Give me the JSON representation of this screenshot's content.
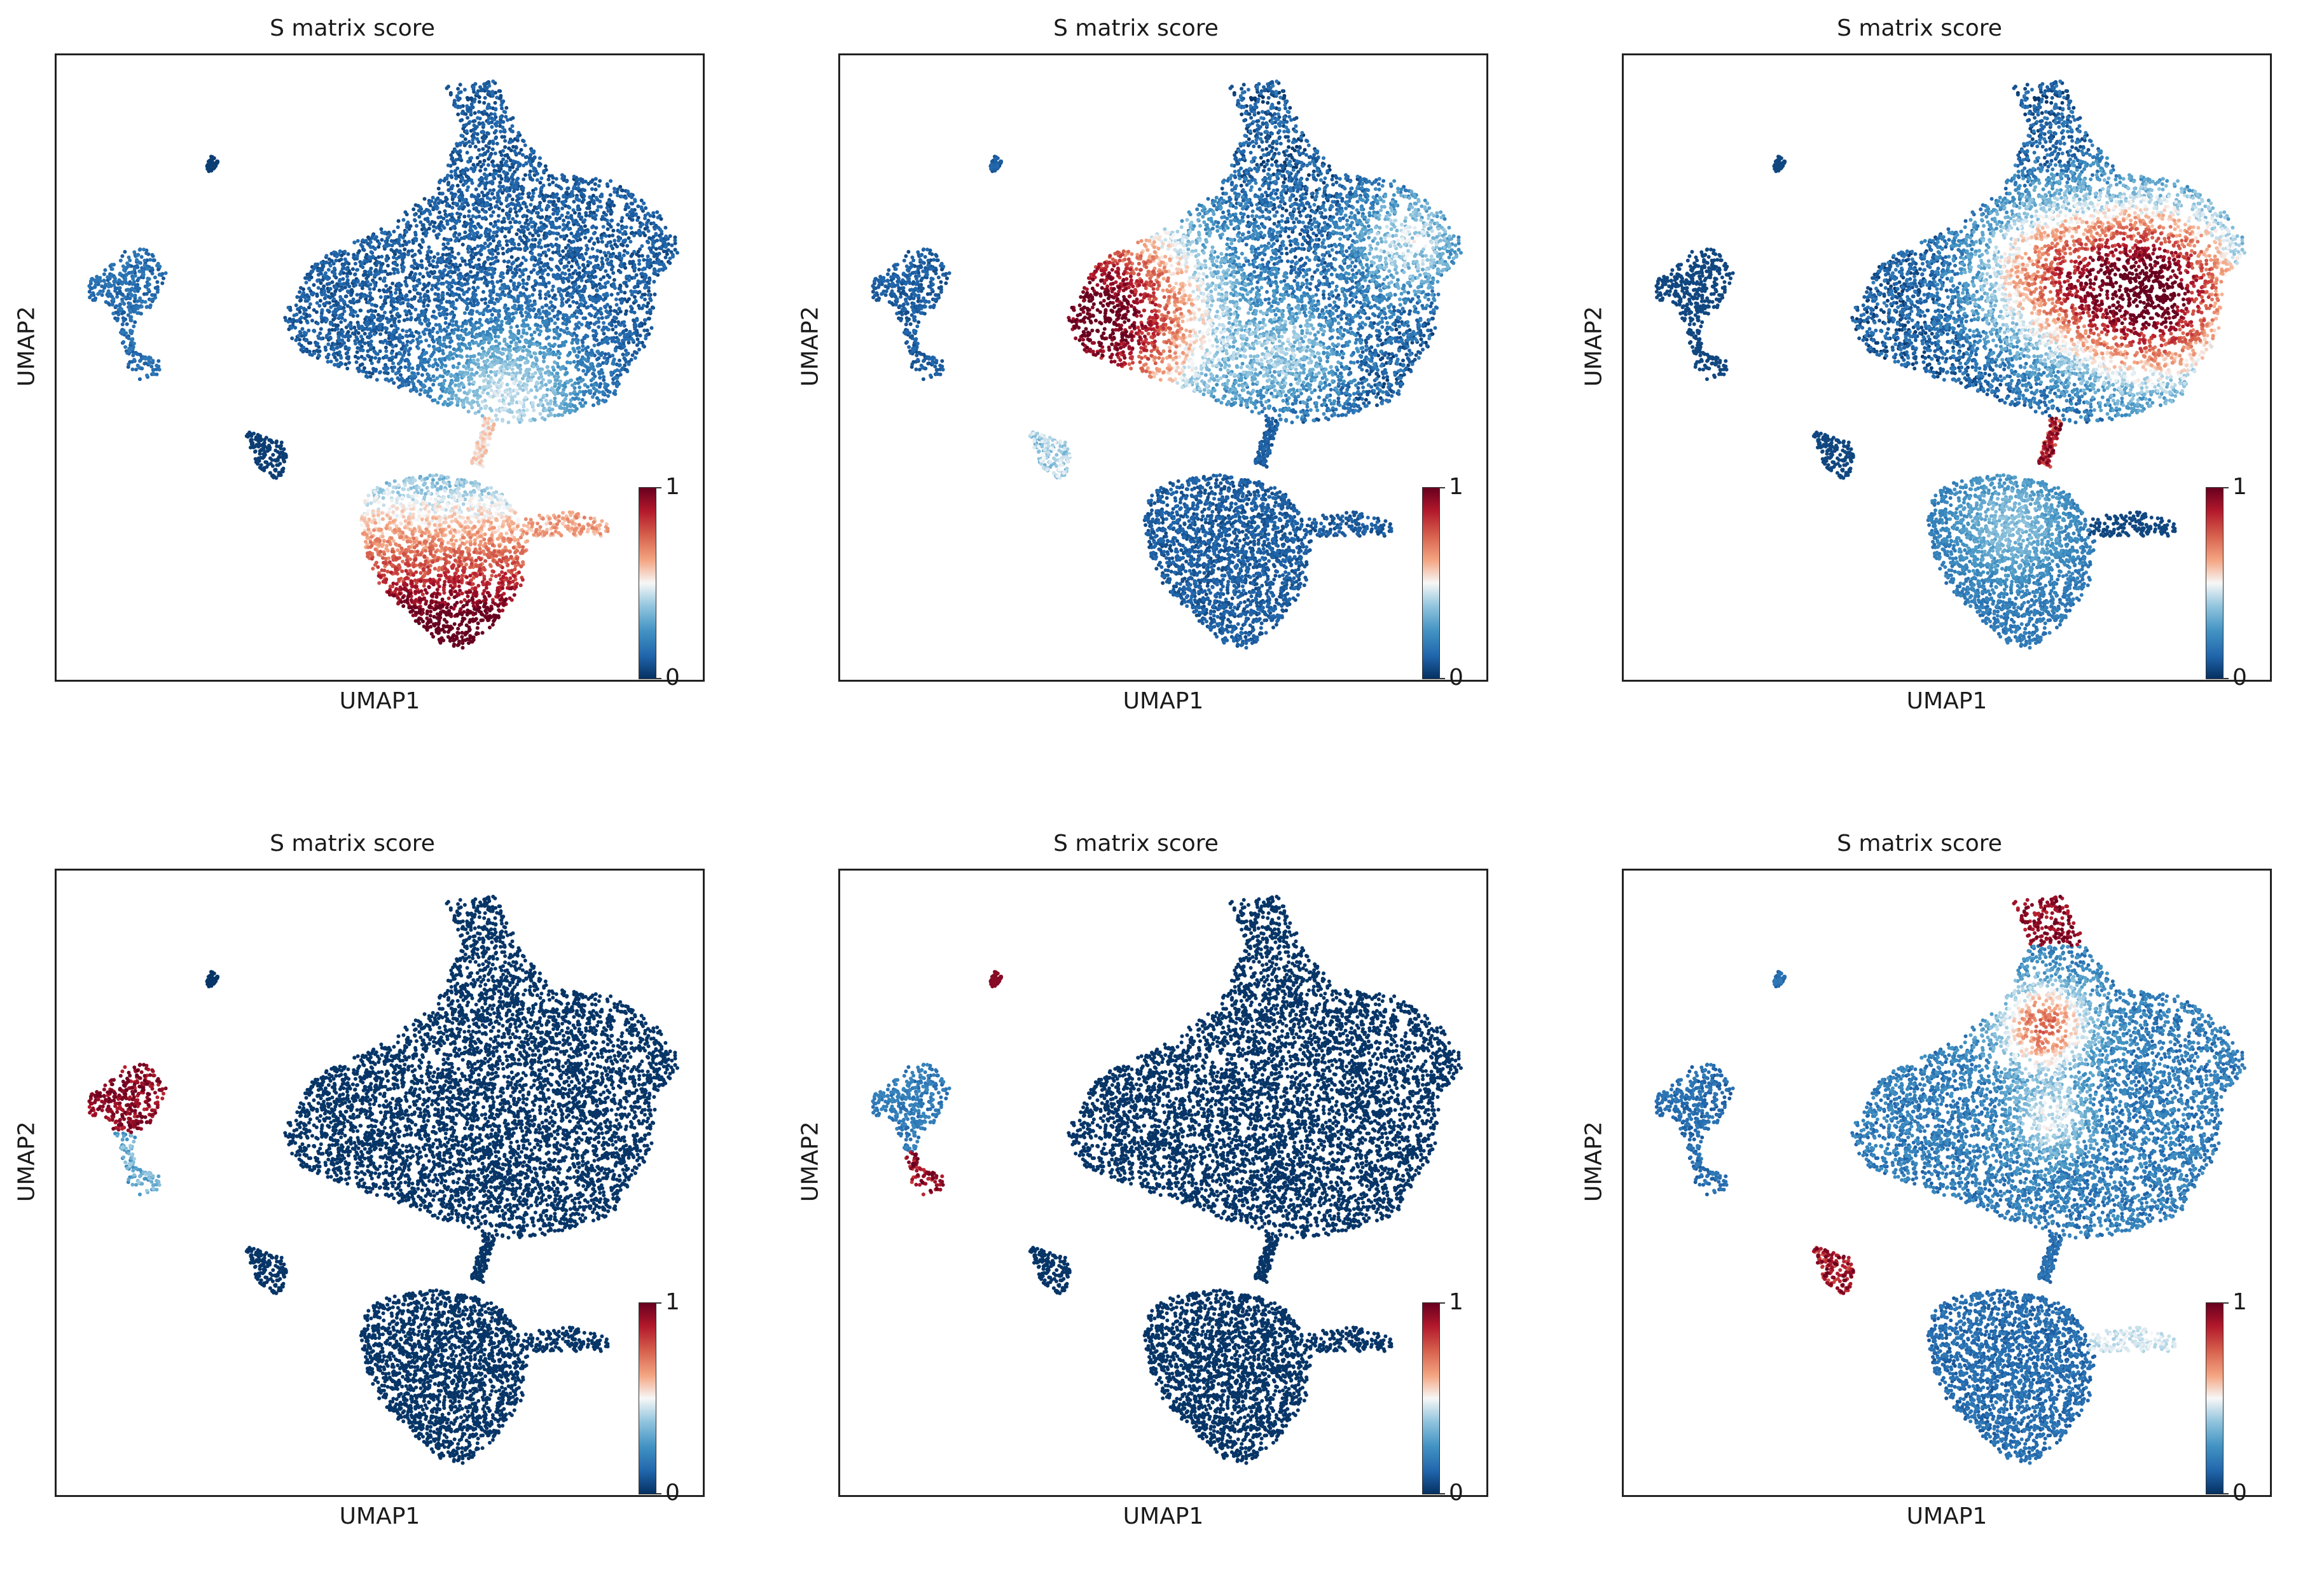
{
  "chart_data": [
    {
      "type": "scatter",
      "title": "S matrix score",
      "xlabel": "UMAP1",
      "ylabel": "UMAP2",
      "colorbar": {
        "min": 0,
        "max": 1,
        "tick_labels": [
          "1",
          "0"
        ]
      },
      "colormap": "RdBu_r",
      "high_region": "bottom-lobe"
    },
    {
      "type": "scatter",
      "title": "S matrix score",
      "xlabel": "UMAP1",
      "ylabel": "UMAP2",
      "colorbar": {
        "min": 0,
        "max": 1,
        "tick_labels": [
          "1",
          "0"
        ]
      },
      "colormap": "RdBu_r",
      "high_region": "left-main"
    },
    {
      "type": "scatter",
      "title": "S matrix score",
      "xlabel": "UMAP1",
      "ylabel": "UMAP2",
      "colorbar": {
        "min": 0,
        "max": 1,
        "tick_labels": [
          "1",
          "0"
        ]
      },
      "colormap": "RdBu_r",
      "high_region": "right-main"
    },
    {
      "type": "scatter",
      "title": "S matrix score",
      "xlabel": "UMAP1",
      "ylabel": "UMAP2",
      "colorbar": {
        "min": 0,
        "max": 1,
        "tick_labels": [
          "1",
          "0"
        ]
      },
      "colormap": "RdBu_r",
      "high_region": "left-cluster-top"
    },
    {
      "type": "scatter",
      "title": "S matrix score",
      "xlabel": "UMAP1",
      "ylabel": "UMAP2",
      "colorbar": {
        "min": 0,
        "max": 1,
        "tick_labels": [
          "1",
          "0"
        ]
      },
      "colormap": "RdBu_r",
      "high_region": "small-strands"
    },
    {
      "type": "scatter",
      "title": "S matrix score",
      "xlabel": "UMAP1",
      "ylabel": "UMAP2",
      "colorbar": {
        "min": 0,
        "max": 1,
        "tick_labels": [
          "1",
          "0"
        ]
      },
      "colormap": "RdBu_r",
      "high_region": "top-lobe"
    }
  ]
}
